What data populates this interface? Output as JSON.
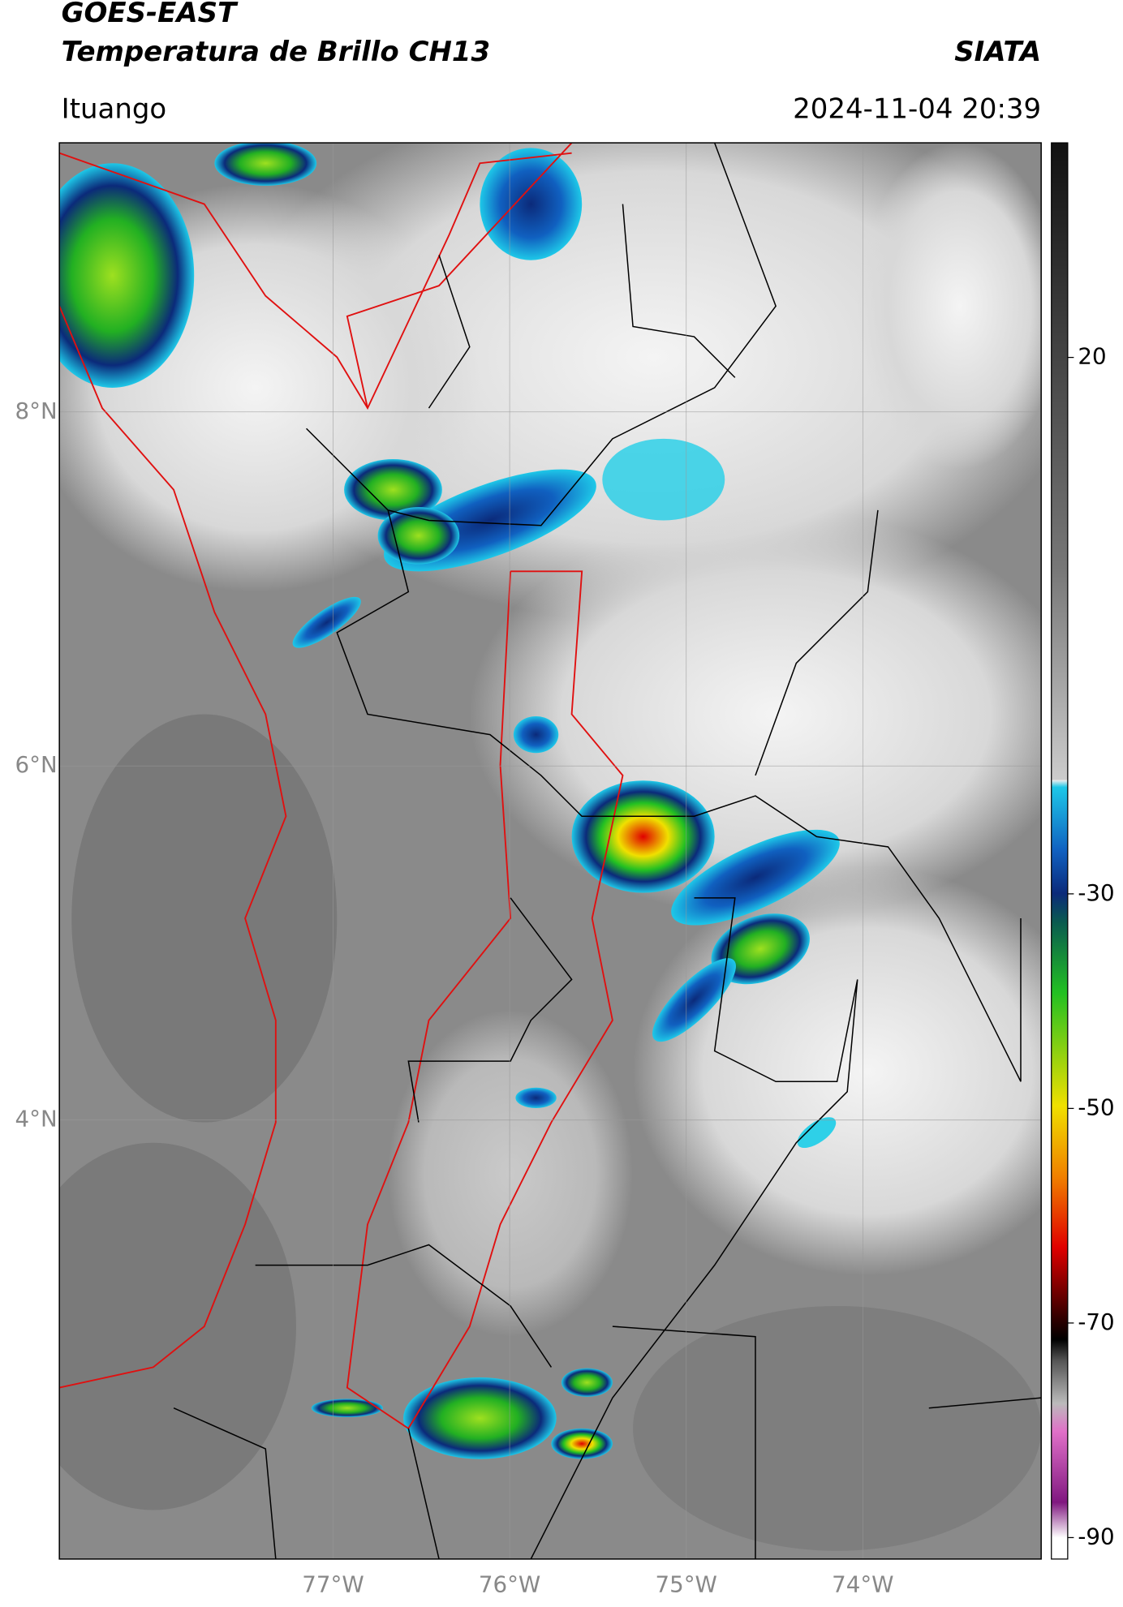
{
  "header": {
    "title": "GOES-EAST",
    "subtitle": "Temperatura de Brillo CH13",
    "source": "SIATA",
    "location": "Ituango",
    "datetime": "2024-11-04 20:39"
  },
  "map": {
    "type": "map",
    "xlim": [
      -78.55,
      -72.99
    ],
    "ylim": [
      1.52,
      9.52
    ],
    "xticks": [
      {
        "value": -77,
        "label": "77°W"
      },
      {
        "value": -76,
        "label": "76°W"
      },
      {
        "value": -75,
        "label": "75°W"
      },
      {
        "value": -74,
        "label": "74°W"
      }
    ],
    "yticks": [
      {
        "value": 8,
        "label": "8°N"
      },
      {
        "value": 6,
        "label": "6°N"
      },
      {
        "value": 4,
        "label": "4°N"
      }
    ],
    "grid": true
  },
  "colorbar": {
    "clim": [
      -92,
      40
    ],
    "ticks": [
      20,
      -30,
      -50,
      -70,
      -90
    ]
  }
}
